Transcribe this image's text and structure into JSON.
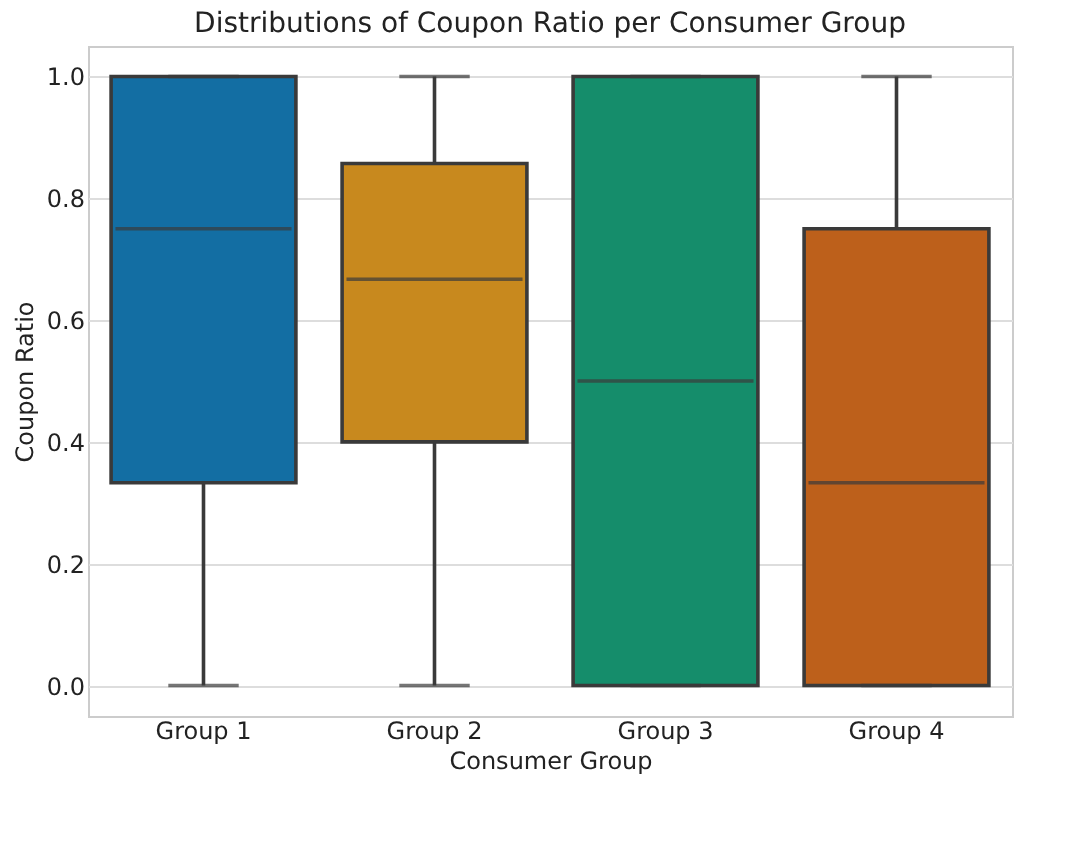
{
  "chart_data": {
    "type": "box",
    "title": "Distributions of Coupon Ratio per Consumer Group",
    "xlabel": "Consumer Group",
    "ylabel": "Coupon Ratio",
    "categories": [
      "Group 1",
      "Group 2",
      "Group 3",
      "Group 4"
    ],
    "boxes": [
      {
        "low": 0,
        "q1": 0.333,
        "median": 0.75,
        "q3": 1,
        "high": 1
      },
      {
        "low": 0,
        "q1": 0.4,
        "median": 0.667,
        "q3": 0.857,
        "high": 1
      },
      {
        "low": 0,
        "q1": 0,
        "median": 0.5,
        "q3": 1,
        "high": 1
      },
      {
        "low": 0,
        "q1": 0,
        "median": 0.333,
        "q3": 0.75,
        "high": 1
      }
    ],
    "colors": [
      "#136ea3",
      "#c8891e",
      "#158d6b",
      "#bd601b"
    ],
    "ylim": [
      -0.05,
      1.05
    ],
    "yticks": [
      {
        "value": 0,
        "label": "0.0"
      },
      0.2,
      0.4,
      0.6,
      0.8,
      {
        "value": 1,
        "label": "1.0"
      }
    ],
    "grid": "y"
  }
}
